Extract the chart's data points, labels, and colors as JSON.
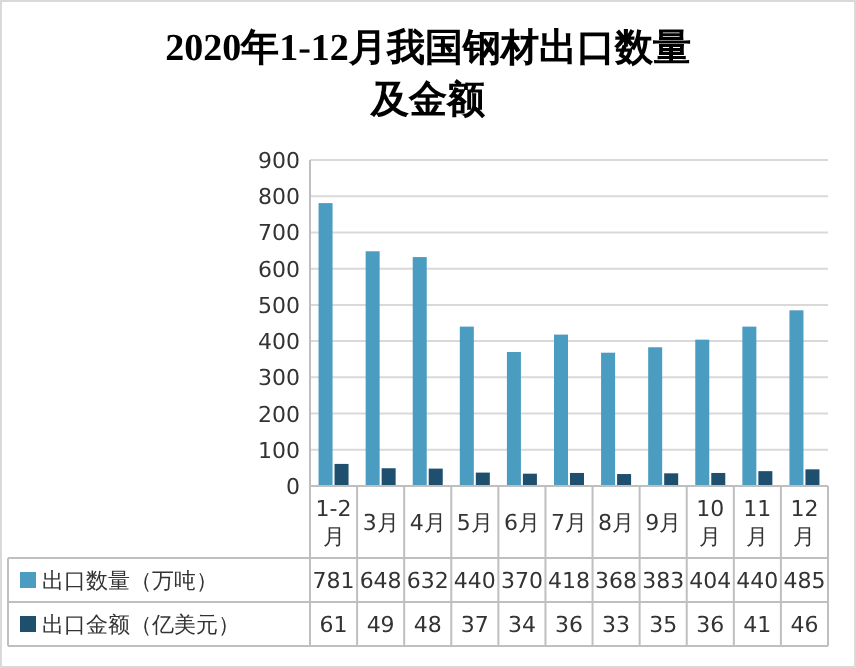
{
  "chart_data": {
    "type": "bar",
    "title": "2020年1-12月我国钢材出口数量及金额",
    "categories": [
      "1-2月",
      "3月",
      "4月",
      "5月",
      "6月",
      "7月",
      "8月",
      "9月",
      "10月",
      "11月",
      "12月"
    ],
    "series": [
      {
        "name": "出口数量（万吨）",
        "color": "#4a9cc0",
        "values": [
          781,
          648,
          632,
          440,
          370,
          418,
          368,
          383,
          404,
          440,
          485
        ]
      },
      {
        "name": "出口金额（亿美元）",
        "color": "#1e4f6e",
        "values": [
          61,
          49,
          48,
          37,
          34,
          36,
          33,
          35,
          36,
          41,
          46
        ]
      }
    ],
    "ylim": [
      0,
      900
    ],
    "yticks": [
      0,
      100,
      200,
      300,
      400,
      500,
      600,
      700,
      800,
      900
    ],
    "grid": "y",
    "legend": "bottom",
    "data_labels": true
  }
}
